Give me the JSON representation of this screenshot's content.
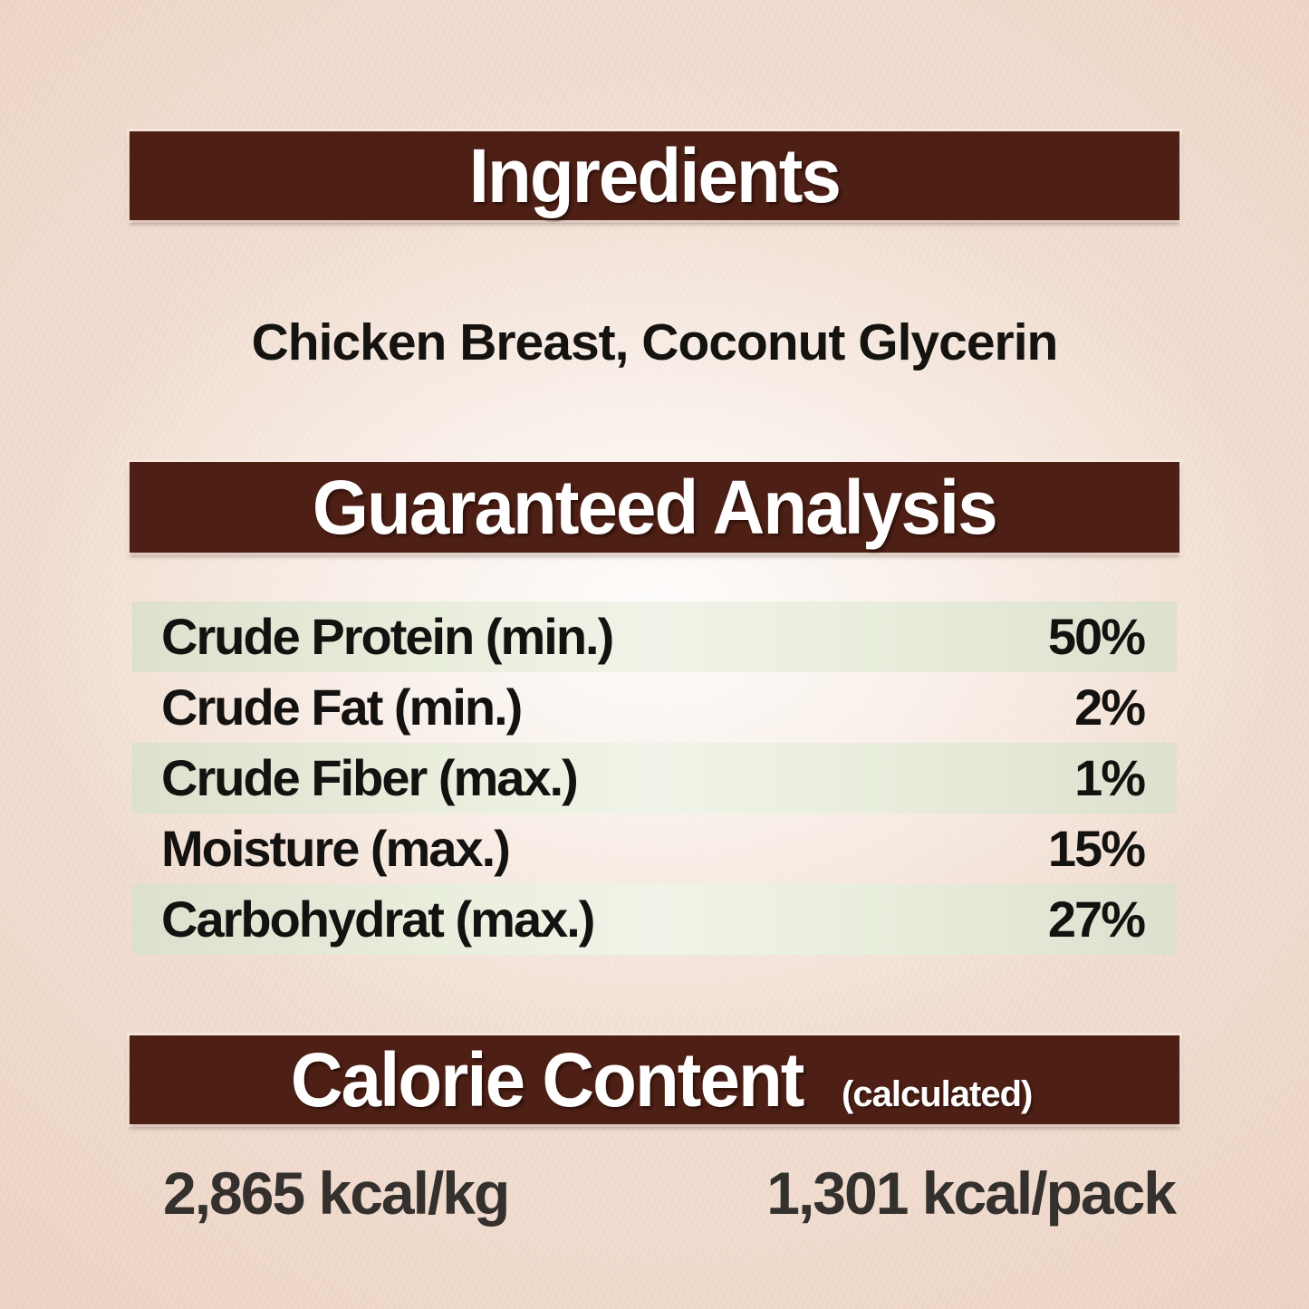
{
  "colors": {
    "header_bar": "#4e2015",
    "header_text": "#ffffff",
    "stripe_green": "#e2e6d3",
    "background_paper": "#ecd3c2",
    "body_text": "#141210",
    "calorie_text": "#33302d"
  },
  "sections": {
    "ingredients": {
      "title": "Ingredients",
      "content": "Chicken Breast, Coconut Glycerin"
    },
    "analysis": {
      "title": "Guaranteed Analysis",
      "rows": [
        {
          "label": "Crude Protein (min.)",
          "value": "50%"
        },
        {
          "label": "Crude Fat (min.)",
          "value": "2%"
        },
        {
          "label": "Crude Fiber (max.)",
          "value": "1%"
        },
        {
          "label": "Moisture (max.)",
          "value": "15%"
        },
        {
          "label": "Carbohydrat (max.)",
          "value": "27%"
        }
      ]
    },
    "calories": {
      "title": "Calorie Content",
      "subtitle": "(calculated)",
      "per_kg": "2,865 kcal/kg",
      "per_pack": "1,301 kcal/pack"
    }
  }
}
